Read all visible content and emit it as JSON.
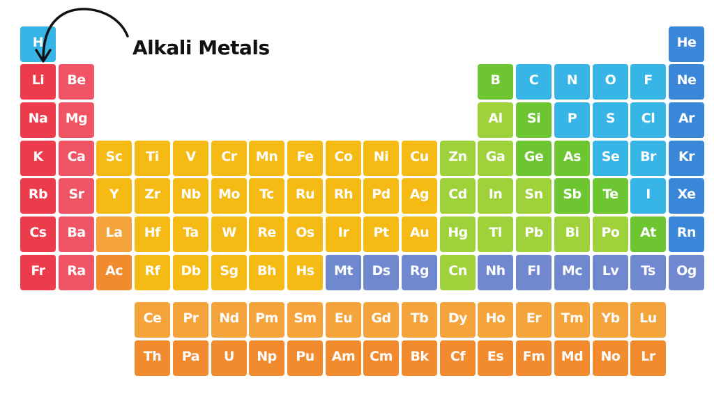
{
  "annotation": {
    "label": "Alkali Metals"
  },
  "colors": {
    "red": "#ec3b4b",
    "red_light": "#ef5565",
    "yellow": "#f5bb14",
    "orange_light": "#f4a43b",
    "orange": "#f28a2e",
    "green_light": "#9fd23a",
    "green": "#6cc531",
    "blue": "#36b5e6",
    "blue_dark": "#3a86d9",
    "purple": "#6f88d0"
  },
  "elements": [
    {
      "s": "H",
      "r": 1,
      "c": 1,
      "col": "blue"
    },
    {
      "s": "He",
      "r": 1,
      "c": 18,
      "col": "blue_dark"
    },
    {
      "s": "Li",
      "r": 2,
      "c": 1,
      "col": "red"
    },
    {
      "s": "Be",
      "r": 2,
      "c": 2,
      "col": "red_light"
    },
    {
      "s": "B",
      "r": 2,
      "c": 13,
      "col": "green"
    },
    {
      "s": "C",
      "r": 2,
      "c": 14,
      "col": "blue"
    },
    {
      "s": "N",
      "r": 2,
      "c": 15,
      "col": "blue"
    },
    {
      "s": "O",
      "r": 2,
      "c": 16,
      "col": "blue"
    },
    {
      "s": "F",
      "r": 2,
      "c": 17,
      "col": "blue"
    },
    {
      "s": "Ne",
      "r": 2,
      "c": 18,
      "col": "blue_dark"
    },
    {
      "s": "Na",
      "r": 3,
      "c": 1,
      "col": "red"
    },
    {
      "s": "Mg",
      "r": 3,
      "c": 2,
      "col": "red_light"
    },
    {
      "s": "Al",
      "r": 3,
      "c": 13,
      "col": "green_light"
    },
    {
      "s": "Si",
      "r": 3,
      "c": 14,
      "col": "green"
    },
    {
      "s": "P",
      "r": 3,
      "c": 15,
      "col": "blue"
    },
    {
      "s": "S",
      "r": 3,
      "c": 16,
      "col": "blue"
    },
    {
      "s": "Cl",
      "r": 3,
      "c": 17,
      "col": "blue"
    },
    {
      "s": "Ar",
      "r": 3,
      "c": 18,
      "col": "blue_dark"
    },
    {
      "s": "K",
      "r": 4,
      "c": 1,
      "col": "red"
    },
    {
      "s": "Ca",
      "r": 4,
      "c": 2,
      "col": "red_light"
    },
    {
      "s": "Sc",
      "r": 4,
      "c": 3,
      "col": "yellow"
    },
    {
      "s": "Ti",
      "r": 4,
      "c": 4,
      "col": "yellow"
    },
    {
      "s": "V",
      "r": 4,
      "c": 5,
      "col": "yellow"
    },
    {
      "s": "Cr",
      "r": 4,
      "c": 6,
      "col": "yellow"
    },
    {
      "s": "Mn",
      "r": 4,
      "c": 7,
      "col": "yellow"
    },
    {
      "s": "Fe",
      "r": 4,
      "c": 8,
      "col": "yellow"
    },
    {
      "s": "Co",
      "r": 4,
      "c": 9,
      "col": "yellow"
    },
    {
      "s": "Ni",
      "r": 4,
      "c": 10,
      "col": "yellow"
    },
    {
      "s": "Cu",
      "r": 4,
      "c": 11,
      "col": "yellow"
    },
    {
      "s": "Zn",
      "r": 4,
      "c": 12,
      "col": "green_light"
    },
    {
      "s": "Ga",
      "r": 4,
      "c": 13,
      "col": "green_light"
    },
    {
      "s": "Ge",
      "r": 4,
      "c": 14,
      "col": "green"
    },
    {
      "s": "As",
      "r": 4,
      "c": 15,
      "col": "green"
    },
    {
      "s": "Se",
      "r": 4,
      "c": 16,
      "col": "blue"
    },
    {
      "s": "Br",
      "r": 4,
      "c": 17,
      "col": "blue"
    },
    {
      "s": "Kr",
      "r": 4,
      "c": 18,
      "col": "blue_dark"
    },
    {
      "s": "Rb",
      "r": 5,
      "c": 1,
      "col": "red"
    },
    {
      "s": "Sr",
      "r": 5,
      "c": 2,
      "col": "red_light"
    },
    {
      "s": "Y",
      "r": 5,
      "c": 3,
      "col": "yellow"
    },
    {
      "s": "Zr",
      "r": 5,
      "c": 4,
      "col": "yellow"
    },
    {
      "s": "Nb",
      "r": 5,
      "c": 5,
      "col": "yellow"
    },
    {
      "s": "Mo",
      "r": 5,
      "c": 6,
      "col": "yellow"
    },
    {
      "s": "Tc",
      "r": 5,
      "c": 7,
      "col": "yellow"
    },
    {
      "s": "Ru",
      "r": 5,
      "c": 8,
      "col": "yellow"
    },
    {
      "s": "Rh",
      "r": 5,
      "c": 9,
      "col": "yellow"
    },
    {
      "s": "Pd",
      "r": 5,
      "c": 10,
      "col": "yellow"
    },
    {
      "s": "Ag",
      "r": 5,
      "c": 11,
      "col": "yellow"
    },
    {
      "s": "Cd",
      "r": 5,
      "c": 12,
      "col": "green_light"
    },
    {
      "s": "In",
      "r": 5,
      "c": 13,
      "col": "green_light"
    },
    {
      "s": "Sn",
      "r": 5,
      "c": 14,
      "col": "green_light"
    },
    {
      "s": "Sb",
      "r": 5,
      "c": 15,
      "col": "green"
    },
    {
      "s": "Te",
      "r": 5,
      "c": 16,
      "col": "green"
    },
    {
      "s": "I",
      "r": 5,
      "c": 17,
      "col": "blue"
    },
    {
      "s": "Xe",
      "r": 5,
      "c": 18,
      "col": "blue_dark"
    },
    {
      "s": "Cs",
      "r": 6,
      "c": 1,
      "col": "red"
    },
    {
      "s": "Ba",
      "r": 6,
      "c": 2,
      "col": "red_light"
    },
    {
      "s": "La",
      "r": 6,
      "c": 3,
      "col": "orange_light"
    },
    {
      "s": "Hf",
      "r": 6,
      "c": 4,
      "col": "yellow"
    },
    {
      "s": "Ta",
      "r": 6,
      "c": 5,
      "col": "yellow"
    },
    {
      "s": "W",
      "r": 6,
      "c": 6,
      "col": "yellow"
    },
    {
      "s": "Re",
      "r": 6,
      "c": 7,
      "col": "yellow"
    },
    {
      "s": "Os",
      "r": 6,
      "c": 8,
      "col": "yellow"
    },
    {
      "s": "Ir",
      "r": 6,
      "c": 9,
      "col": "yellow"
    },
    {
      "s": "Pt",
      "r": 6,
      "c": 10,
      "col": "yellow"
    },
    {
      "s": "Au",
      "r": 6,
      "c": 11,
      "col": "yellow"
    },
    {
      "s": "Hg",
      "r": 6,
      "c": 12,
      "col": "green_light"
    },
    {
      "s": "Tl",
      "r": 6,
      "c": 13,
      "col": "green_light"
    },
    {
      "s": "Pb",
      "r": 6,
      "c": 14,
      "col": "green_light"
    },
    {
      "s": "Bi",
      "r": 6,
      "c": 15,
      "col": "green_light"
    },
    {
      "s": "Po",
      "r": 6,
      "c": 16,
      "col": "green_light"
    },
    {
      "s": "At",
      "r": 6,
      "c": 17,
      "col": "green"
    },
    {
      "s": "Rn",
      "r": 6,
      "c": 18,
      "col": "blue_dark"
    },
    {
      "s": "Fr",
      "r": 7,
      "c": 1,
      "col": "red"
    },
    {
      "s": "Ra",
      "r": 7,
      "c": 2,
      "col": "red_light"
    },
    {
      "s": "Ac",
      "r": 7,
      "c": 3,
      "col": "orange"
    },
    {
      "s": "Rf",
      "r": 7,
      "c": 4,
      "col": "yellow"
    },
    {
      "s": "Db",
      "r": 7,
      "c": 5,
      "col": "yellow"
    },
    {
      "s": "Sg",
      "r": 7,
      "c": 6,
      "col": "yellow"
    },
    {
      "s": "Bh",
      "r": 7,
      "c": 7,
      "col": "yellow"
    },
    {
      "s": "Hs",
      "r": 7,
      "c": 8,
      "col": "yellow"
    },
    {
      "s": "Mt",
      "r": 7,
      "c": 9,
      "col": "purple"
    },
    {
      "s": "Ds",
      "r": 7,
      "c": 10,
      "col": "purple"
    },
    {
      "s": "Rg",
      "r": 7,
      "c": 11,
      "col": "purple"
    },
    {
      "s": "Cn",
      "r": 7,
      "c": 12,
      "col": "green_light"
    },
    {
      "s": "Nh",
      "r": 7,
      "c": 13,
      "col": "purple"
    },
    {
      "s": "Fl",
      "r": 7,
      "c": 14,
      "col": "purple"
    },
    {
      "s": "Mc",
      "r": 7,
      "c": 15,
      "col": "purple"
    },
    {
      "s": "Lv",
      "r": 7,
      "c": 16,
      "col": "purple"
    },
    {
      "s": "Ts",
      "r": 7,
      "c": 17,
      "col": "purple"
    },
    {
      "s": "Og",
      "r": 7,
      "c": 18,
      "col": "purple"
    },
    {
      "s": "Ce",
      "r": 8,
      "c": 4,
      "col": "orange_light"
    },
    {
      "s": "Pr",
      "r": 8,
      "c": 5,
      "col": "orange_light"
    },
    {
      "s": "Nd",
      "r": 8,
      "c": 6,
      "col": "orange_light"
    },
    {
      "s": "Pm",
      "r": 8,
      "c": 7,
      "col": "orange_light"
    },
    {
      "s": "Sm",
      "r": 8,
      "c": 8,
      "col": "orange_light"
    },
    {
      "s": "Eu",
      "r": 8,
      "c": 9,
      "col": "orange_light"
    },
    {
      "s": "Gd",
      "r": 8,
      "c": 10,
      "col": "orange_light"
    },
    {
      "s": "Tb",
      "r": 8,
      "c": 11,
      "col": "orange_light"
    },
    {
      "s": "Dy",
      "r": 8,
      "c": 12,
      "col": "orange_light"
    },
    {
      "s": "Ho",
      "r": 8,
      "c": 13,
      "col": "orange_light"
    },
    {
      "s": "Er",
      "r": 8,
      "c": 14,
      "col": "orange_light"
    },
    {
      "s": "Tm",
      "r": 8,
      "c": 15,
      "col": "orange_light"
    },
    {
      "s": "Yb",
      "r": 8,
      "c": 16,
      "col": "orange_light"
    },
    {
      "s": "Lu",
      "r": 8,
      "c": 17,
      "col": "orange_light"
    },
    {
      "s": "Th",
      "r": 9,
      "c": 4,
      "col": "orange"
    },
    {
      "s": "Pa",
      "r": 9,
      "c": 5,
      "col": "orange"
    },
    {
      "s": "U",
      "r": 9,
      "c": 6,
      "col": "orange"
    },
    {
      "s": "Np",
      "r": 9,
      "c": 7,
      "col": "orange"
    },
    {
      "s": "Pu",
      "r": 9,
      "c": 8,
      "col": "orange"
    },
    {
      "s": "Am",
      "r": 9,
      "c": 9,
      "col": "orange"
    },
    {
      "s": "Cm",
      "r": 9,
      "c": 10,
      "col": "orange"
    },
    {
      "s": "Bk",
      "r": 9,
      "c": 11,
      "col": "orange"
    },
    {
      "s": "Cf",
      "r": 9,
      "c": 12,
      "col": "orange"
    },
    {
      "s": "Es",
      "r": 9,
      "c": 13,
      "col": "orange"
    },
    {
      "s": "Fm",
      "r": 9,
      "c": 14,
      "col": "orange"
    },
    {
      "s": "Md",
      "r": 9,
      "c": 15,
      "col": "orange"
    },
    {
      "s": "No",
      "r": 9,
      "c": 16,
      "col": "orange"
    },
    {
      "s": "Lr",
      "r": 9,
      "c": 17,
      "col": "orange"
    }
  ]
}
